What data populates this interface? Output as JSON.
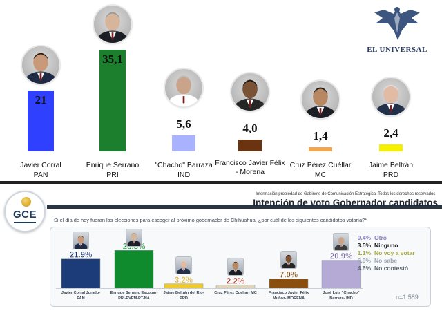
{
  "chart_data": [
    {
      "type": "bar",
      "categories": [
        "Javier Corral",
        "Enrique Serrano",
        "\"Chacho\" Barraza",
        "Francisco Javier Félix - Morena",
        "Cruz Pérez Cuéllar",
        "Jaime Beltrán"
      ],
      "parties": [
        "PAN",
        "PRI",
        "IND",
        "",
        "MC",
        "PRD"
      ],
      "values": [
        21,
        35.1,
        5.6,
        4.0,
        1.4,
        2.4
      ],
      "value_labels": [
        "21",
        "35,1",
        "5,6",
        "4,0",
        "1,4",
        "2,4"
      ],
      "colors": [
        "#2f41ff",
        "#1c7f2d",
        "#a9b2ff",
        "#6b3411",
        "#f4a54a",
        "#f5f000"
      ],
      "ylim": [
        0,
        38
      ],
      "title": "",
      "xlabel": "",
      "ylabel": "",
      "grid": false,
      "logo_text": "EL UNIVERSAL"
    },
    {
      "type": "bar",
      "header_note": "Información propiedad de Gabinete de Comunicación Estratégica. Todos los derechos reservados.",
      "title": "Intención de voto Gobernador candidatos",
      "question": "Si el día de hoy fueran las elecciones para escoger al próximo gobernador de Chihuahua, ¿por cuál de los siguientes candidatos votaría?*",
      "logo_text": "GCE",
      "categories": [
        [
          "Javier Corral Jurado-",
          "PAN"
        ],
        [
          "Enrique Serrano Escobar-",
          "PRI-PVEM-PT-NA"
        ],
        [
          "Jaime Beltrán del Río-",
          "PRD"
        ],
        [
          "Cruz Pérez Cuellar- MC"
        ],
        [
          "Francisco Javier Félix",
          "Muñoz- MORENA"
        ],
        [
          "José Luis \"Chacho\"",
          "Barraza- IND"
        ]
      ],
      "values": [
        21.9,
        28.3,
        3.2,
        2.2,
        7.0,
        20.9
      ],
      "value_labels": [
        "21.9%",
        "28.3%",
        "3.2%",
        "2.2%",
        "7.0%",
        "20.9%"
      ],
      "colors": [
        "#1c3b79",
        "#0f8a2c",
        "#f0c92a",
        "#e0d6b5",
        "#8a4f0f",
        "#b5aad6"
      ],
      "label_colors": [
        "#1c3b79",
        "#0f8a2c",
        "#e0b21a",
        "#b23a2a",
        "#8a4f0f",
        "#7a70a8"
      ],
      "ylim": [
        0,
        30
      ],
      "grid": false,
      "legend": [
        {
          "value": "0.4%",
          "label": "Otro",
          "color": "#8a7fc0"
        },
        {
          "value": "3.5%",
          "label": "Ninguno",
          "color": "#1a1a1a"
        },
        {
          "value": "1.1%",
          "label": "No voy a votar",
          "color": "#a6a63a"
        },
        {
          "value": "6.9%",
          "label": "No sabe",
          "color": "#9aa6b2"
        },
        {
          "value": "4.6%",
          "label": "No contestó",
          "color": "#5a6470"
        }
      ],
      "legend_position": "right",
      "sample": "n=1,589"
    }
  ]
}
